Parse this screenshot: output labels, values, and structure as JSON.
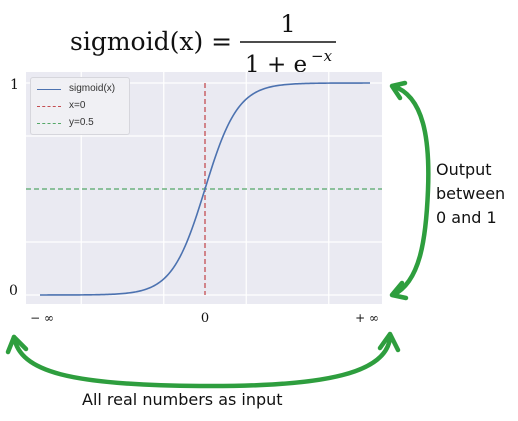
{
  "formula": {
    "lhs": "sigmoid(x) =",
    "numerator": "1",
    "denominator_base": "1 + e",
    "denominator_exponent": "−x"
  },
  "chart_data": {
    "type": "line",
    "series": [
      {
        "name": "sigmoid(x)",
        "color": "#4c72b0",
        "style": "solid"
      },
      {
        "name": "x=0",
        "color": "#c44e52",
        "style": "dashed"
      },
      {
        "name": "y=0.5",
        "color": "#55a868",
        "style": "dashed"
      }
    ],
    "x_tick_labels": [
      "− ∞",
      "0",
      "+ ∞"
    ],
    "y_tick_labels": [
      "0",
      "1"
    ],
    "xlim": [
      -10,
      10
    ],
    "ylim": [
      0,
      1
    ],
    "grid": true,
    "legend_position": "top-left",
    "background": "#eaeaf2"
  },
  "annotations": {
    "output_text": [
      "Output",
      "between",
      "0 and 1"
    ],
    "input_text": "All real numbers as input",
    "arrow_color": "#2e9e3e"
  }
}
